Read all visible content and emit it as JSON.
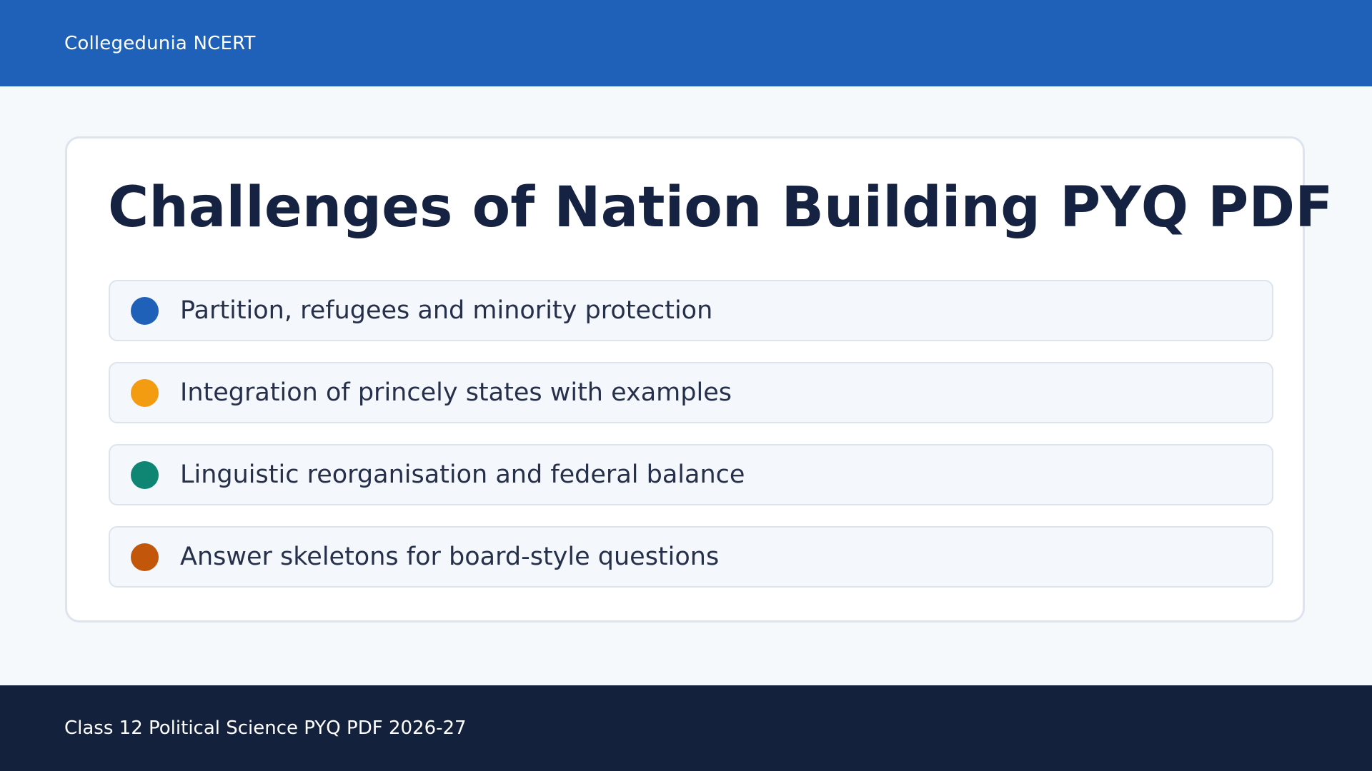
{
  "header": {
    "brand": "Collegedunia NCERT",
    "background": "#1f61b8"
  },
  "card": {
    "title": "Challenges of Nation Building PYQ PDF",
    "items": [
      {
        "label": "Partition, refugees and minority protection",
        "color": "#1f61b8"
      },
      {
        "label": "Integration of princely states with examples",
        "color": "#f39c12"
      },
      {
        "label": "Linguistic reorganisation and federal balance",
        "color": "#0f8574"
      },
      {
        "label": "Answer skeletons for board-style questions",
        "color": "#c2570c"
      }
    ]
  },
  "footer": {
    "text": "Class 12 Political Science PYQ PDF 2026-27",
    "background": "#14213d"
  }
}
